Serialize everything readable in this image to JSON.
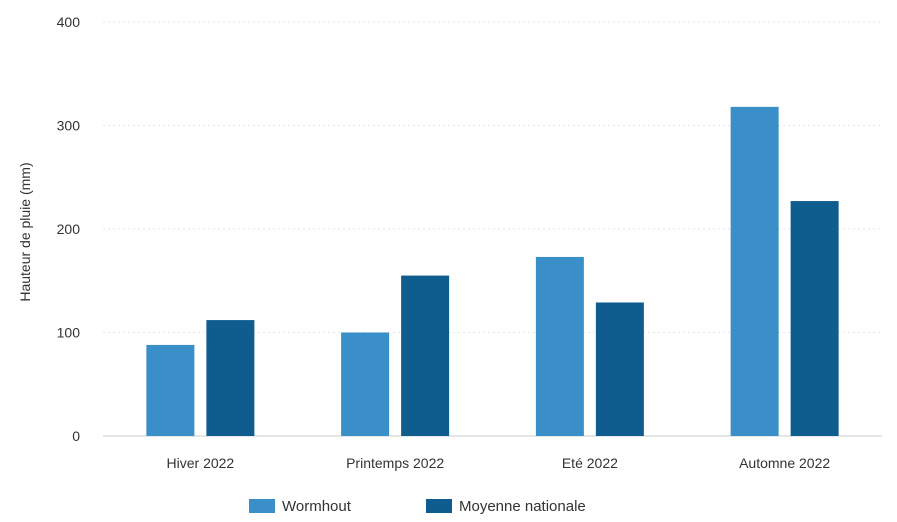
{
  "chart_data": {
    "type": "bar",
    "categories": [
      "Hiver 2022",
      "Printemps 2022",
      "Eté 2022",
      "Automne 2022"
    ],
    "series": [
      {
        "name": "Wormhout",
        "values": [
          88,
          100,
          173,
          318
        ],
        "color": "#3a8fc8"
      },
      {
        "name": "Moyenne nationale",
        "values": [
          112,
          155,
          129,
          227
        ],
        "color": "#0f5c8f"
      }
    ],
    "title": "",
    "xlabel": "",
    "ylabel": "Hauteur de pluie (mm)",
    "ylim": [
      0,
      400
    ],
    "yticks": [
      0,
      100,
      200,
      300,
      400
    ],
    "grid": true,
    "legend_position": "bottom-center"
  }
}
